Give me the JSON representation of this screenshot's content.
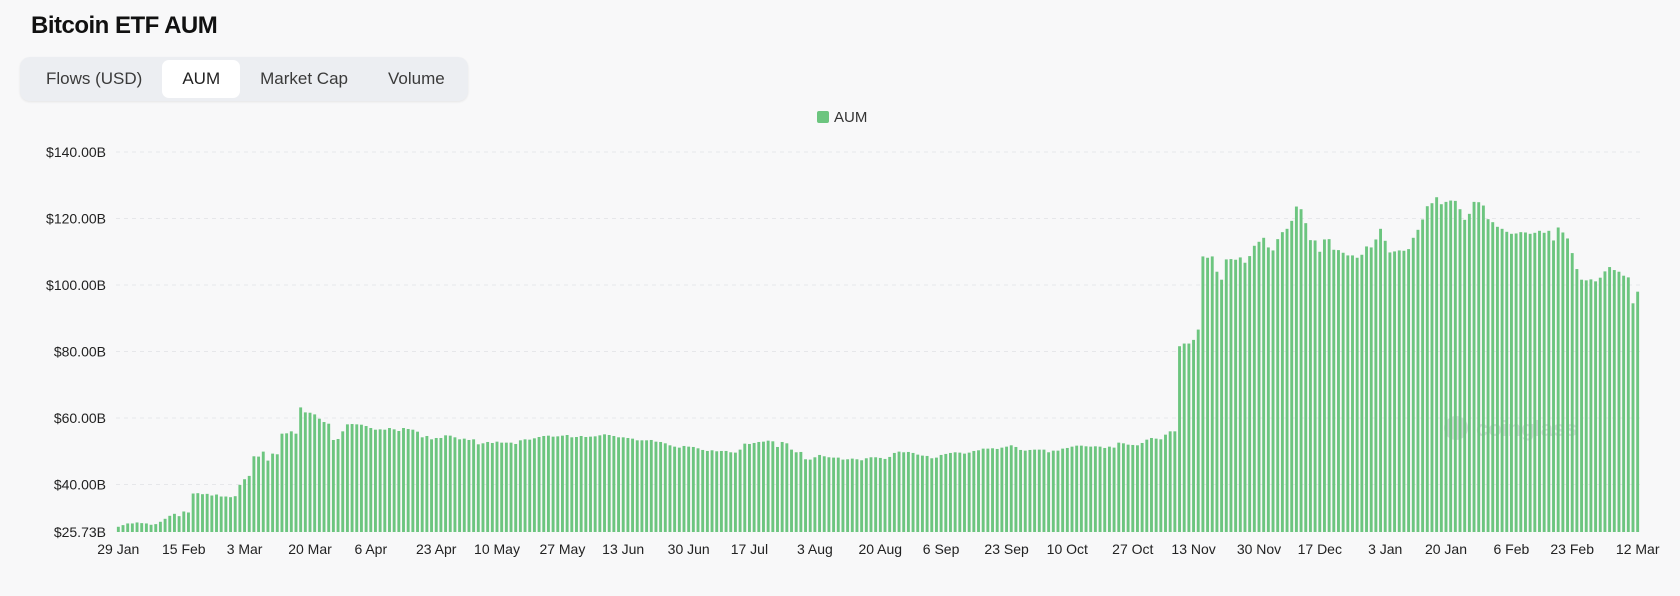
{
  "page": {
    "title": "Bitcoin ETF AUM"
  },
  "tabs": [
    {
      "label": "Flows (USD)",
      "active": false
    },
    {
      "label": "AUM",
      "active": true
    },
    {
      "label": "Market Cap",
      "active": false
    },
    {
      "label": "Volume",
      "active": false
    }
  ],
  "watermark": "coinglass",
  "chart_data": {
    "type": "bar",
    "title": "",
    "xlabel": "",
    "ylabel": "",
    "legend": {
      "position": "top-center"
    },
    "grid": true,
    "ylim": [
      25.73,
      140
    ],
    "y_ticks": [
      25.73,
      40,
      60,
      80,
      100,
      120,
      140
    ],
    "y_tick_labels": [
      "$25.73B",
      "$40.00B",
      "$60.00B",
      "$80.00B",
      "$100.00B",
      "$120.00B",
      "$140.00B"
    ],
    "x_tick_labels": [
      "29 Jan",
      "15 Feb",
      "3 Mar",
      "20 Mar",
      "6 Apr",
      "23 Apr",
      "10 May",
      "27 May",
      "13 Jun",
      "30 Jun",
      "17 Jul",
      "3 Aug",
      "20 Aug",
      "6 Sep",
      "23 Sep",
      "10 Oct",
      "27 Oct",
      "13 Nov",
      "30 Nov",
      "17 Dec",
      "3 Jan",
      "20 Jan",
      "6 Feb",
      "23 Feb",
      "12 Mar"
    ],
    "series": [
      {
        "name": "AUM",
        "color": "#6cc57f",
        "values": [
          27.3,
          27.8,
          28.3,
          28.3,
          28.6,
          28.4,
          28.3,
          27.9,
          28.1,
          28.8,
          29.7,
          30.6,
          31.2,
          30.5,
          31.9,
          31.6,
          37.3,
          37.4,
          37.1,
          37.2,
          36.7,
          37.0,
          36.4,
          36.4,
          36.2,
          36.5,
          39.9,
          41.6,
          42.6,
          48.5,
          48.4,
          49.9,
          47.2,
          49.3,
          49.1,
          55.3,
          55.4,
          56.0,
          55.3,
          63.2,
          61.7,
          61.6,
          61.1,
          59.8,
          58.8,
          58.3,
          53.4,
          53.7,
          56.0,
          58.1,
          58.2,
          58.1,
          58.0,
          57.6,
          57.0,
          56.5,
          56.6,
          56.5,
          57.0,
          56.6,
          56.1,
          57.0,
          56.7,
          56.5,
          55.9,
          54.2,
          54.6,
          53.6,
          54.0,
          54.0,
          54.8,
          54.7,
          54.2,
          53.6,
          53.8,
          53.4,
          53.6,
          52.1,
          52.4,
          52.8,
          52.5,
          52.9,
          52.6,
          52.6,
          52.6,
          52.2,
          53.3,
          53.6,
          53.5,
          53.9,
          54.3,
          54.6,
          54.7,
          54.4,
          54.5,
          54.7,
          54.9,
          54.2,
          54.3,
          54.6,
          54.3,
          54.4,
          54.5,
          54.8,
          55.1,
          54.9,
          54.6,
          54.2,
          54.2,
          54.0,
          53.8,
          53.3,
          53.3,
          53.3,
          53.4,
          52.9,
          52.8,
          52.4,
          51.8,
          51.4,
          51.1,
          51.6,
          51.4,
          51.3,
          50.9,
          50.4,
          50.1,
          50.3,
          50.0,
          50.1,
          50.1,
          49.7,
          49.6,
          50.5,
          52.3,
          52.2,
          52.5,
          52.8,
          52.9,
          53.2,
          53.0,
          51.3,
          52.8,
          52.4,
          50.5,
          49.7,
          49.8,
          47.6,
          47.5,
          48.2,
          48.9,
          48.5,
          48.2,
          48.1,
          48.1,
          47.5,
          47.6,
          47.8,
          47.6,
          47.3,
          47.9,
          48.2,
          48.2,
          48.0,
          47.7,
          48.3,
          49.5,
          49.9,
          49.7,
          49.8,
          49.5,
          49.0,
          48.7,
          48.6,
          47.9,
          48.1,
          48.9,
          49.2,
          49.5,
          49.7,
          49.6,
          49.3,
          49.6,
          50.1,
          50.3,
          50.8,
          50.8,
          50.9,
          50.7,
          51.1,
          51.4,
          51.8,
          51.3,
          50.4,
          50.2,
          50.4,
          50.5,
          50.5,
          50.5,
          49.7,
          50.2,
          50.2,
          50.8,
          51.0,
          51.4,
          51.7,
          51.7,
          51.5,
          51.4,
          51.5,
          51.4,
          51.0,
          51.4,
          51.1,
          52.6,
          52.4,
          52.0,
          51.9,
          51.8,
          52.5,
          53.5,
          54.0,
          53.8,
          53.6,
          55.0,
          56.0,
          56.0,
          81.6,
          82.4,
          82.4,
          83.5,
          86.6,
          108.6,
          108.2,
          108.6,
          104.0,
          101.6,
          107.7,
          107.8,
          107.6,
          108.3,
          106.7,
          108.7,
          111.8,
          113.0,
          114.2,
          111.3,
          110.4,
          113.8,
          115.9,
          116.9,
          119.3,
          123.6,
          122.8,
          118.6,
          113.5,
          113.4,
          110.0,
          113.7,
          113.8,
          110.6,
          110.5,
          109.7,
          108.9,
          108.9,
          108.2,
          109.1,
          111.6,
          111.3,
          113.7,
          116.9,
          113.3,
          109.8,
          110.1,
          110.4,
          110.3,
          110.8,
          114.2,
          116.6,
          119.7,
          123.7,
          124.6,
          126.4,
          124.3,
          125.0,
          125.4,
          125.3,
          122.8,
          119.6,
          121.4,
          125.0,
          124.9,
          123.9,
          119.8,
          118.9,
          117.5,
          116.9,
          116.0,
          115.4,
          115.5,
          115.9,
          115.8,
          115.4,
          115.7,
          116.3,
          115.7,
          116.3,
          113.4,
          117.3,
          115.8,
          114.0,
          109.6,
          104.8,
          101.6,
          101.4,
          101.7,
          101.1,
          102.2,
          104.1,
          105.4,
          104.5,
          104.0,
          102.8,
          102.3,
          94.5,
          98.0
        ]
      }
    ]
  }
}
